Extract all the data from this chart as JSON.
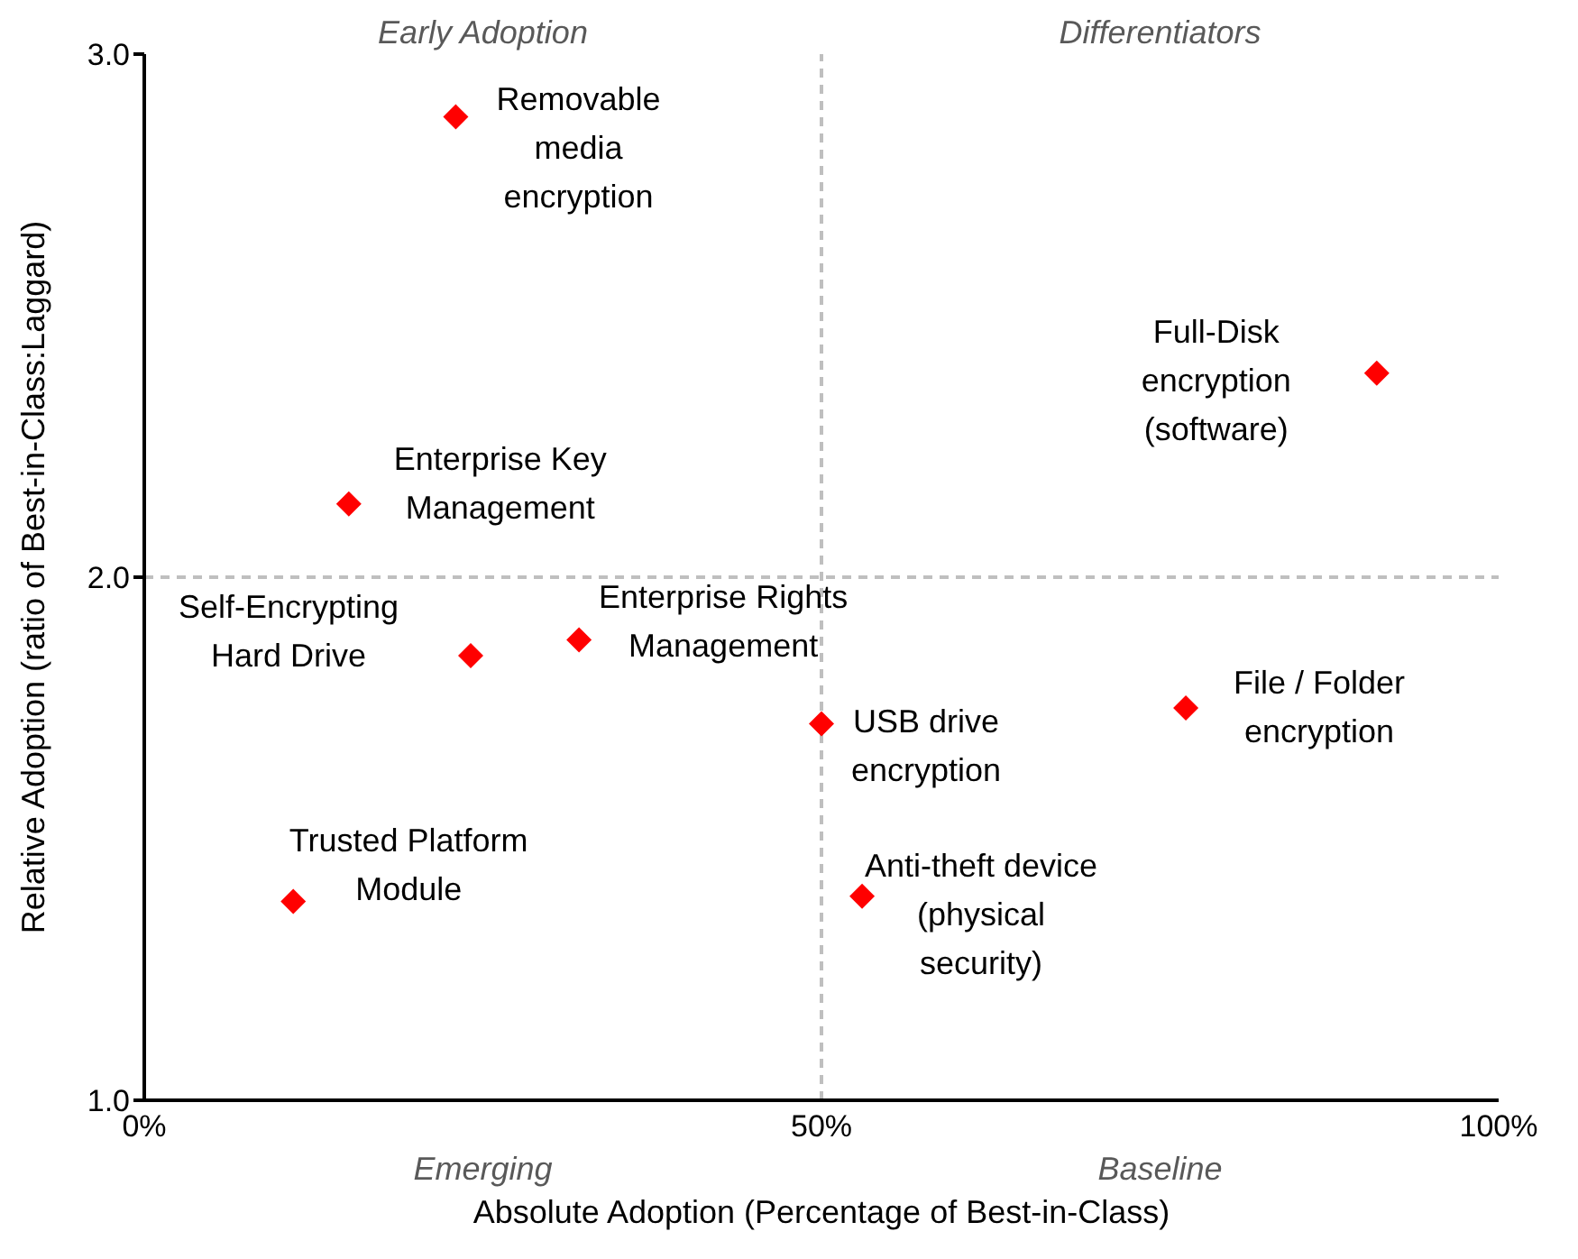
{
  "chart_data": {
    "type": "scatter",
    "xlabel": "Absolute Adoption (Percentage of Best-in-Class)",
    "ylabel": "Relative Adoption (ratio of Best-in-Class:Laggard)",
    "x": [
      23.0,
      91.0,
      15.1,
      24.1,
      32.1,
      50.0,
      76.9,
      53.0,
      11.0
    ],
    "series": [
      {
        "color": "#ff0000",
        "values": [
          2.88,
          2.39,
          2.14,
          1.85,
          1.88,
          1.72,
          1.75,
          1.39,
          1.38
        ]
      }
    ],
    "marker": "diamond",
    "xlim": [
      0,
      100
    ],
    "ylim": [
      1,
      3
    ],
    "xticks": [
      {
        "value": 0,
        "label": "0%"
      },
      {
        "value": 50,
        "label": "50%"
      },
      {
        "value": 100,
        "label": "100%"
      }
    ],
    "yticks": [
      {
        "value": 1,
        "label": "1.0"
      },
      {
        "value": 2,
        "label": "2.0"
      },
      {
        "value": 3,
        "label": "3.0"
      }
    ],
    "ref_lines": [
      {
        "axis": "x",
        "value": 50,
        "color": "#bfbfbf",
        "line_style": "dashed"
      },
      {
        "axis": "y",
        "value": 2,
        "color": "#bfbfbf",
        "line_style": "dashed"
      }
    ],
    "annotations": [
      "Early Adoption",
      "Differentiators",
      "Emerging",
      "Baseline",
      {
        "text": "Removable\nmedia\nencryption",
        "x": 23.0,
        "y": 2.88
      },
      {
        "text": "Full-Disk\nencryption\n(software)",
        "x": 91.0,
        "y": 2.39
      },
      {
        "text": "Enterprise Key\nManagement",
        "x": 15.1,
        "y": 2.14
      },
      {
        "text": "Self-Encrypting\nHard Drive",
        "x": 24.1,
        "y": 1.85
      },
      {
        "text": "Enterprise Rights\nManagement",
        "x": 32.1,
        "y": 1.88
      },
      {
        "text": "USB drive\nencryption",
        "x": 50.0,
        "y": 1.72
      },
      {
        "text": "File / Folder\nencryption",
        "x": 76.9,
        "y": 1.75
      },
      {
        "text": "Anti-theft device\n(physical\nsecurity)",
        "x": 53.0,
        "y": 1.39
      },
      {
        "text": "Trusted Platform\nModule",
        "x": 11.0,
        "y": 1.38
      }
    ]
  }
}
